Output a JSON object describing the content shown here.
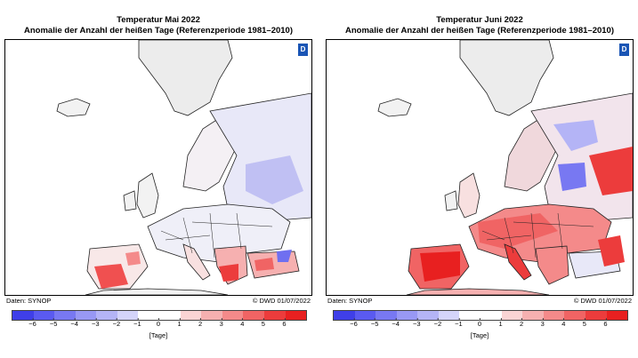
{
  "panels": [
    {
      "title": "Temperatur Mai 2022",
      "subtitle": "Anomalie der Anzahl der heißen Tage (Referenzperiode 1981–2010)",
      "source": "Daten: SYNOP",
      "credit": "© DWD 01/07/2022",
      "logo": "dwd-logo"
    },
    {
      "title": "Temperatur Juni 2022",
      "subtitle": "Anomalie der Anzahl der heißen Tage (Referenzperiode 1981–2010)",
      "source": "Daten: SYNOP",
      "credit": "© DWD 01/07/2022",
      "logo": "dwd-logo"
    }
  ],
  "colorbar": {
    "unit": "[Tage]",
    "ticks": [
      "−6",
      "−5",
      "−4",
      "−3",
      "−2",
      "−1",
      "0",
      "1",
      "2",
      "3",
      "4",
      "5",
      "6"
    ],
    "colors": [
      "#3f3fe8",
      "#5a5af0",
      "#7878f2",
      "#9898f4",
      "#b4b4f6",
      "#d4d4fa",
      "#ffffff",
      "#ffffff",
      "#fad4d4",
      "#f6b0b0",
      "#f48a8a",
      "#f06464",
      "#ec3c3c",
      "#e82020"
    ]
  },
  "colors": {
    "land": "#f2f2f2",
    "greenland": "#ececec",
    "warm": "#f05050",
    "cold": "#6f6ff0"
  }
}
